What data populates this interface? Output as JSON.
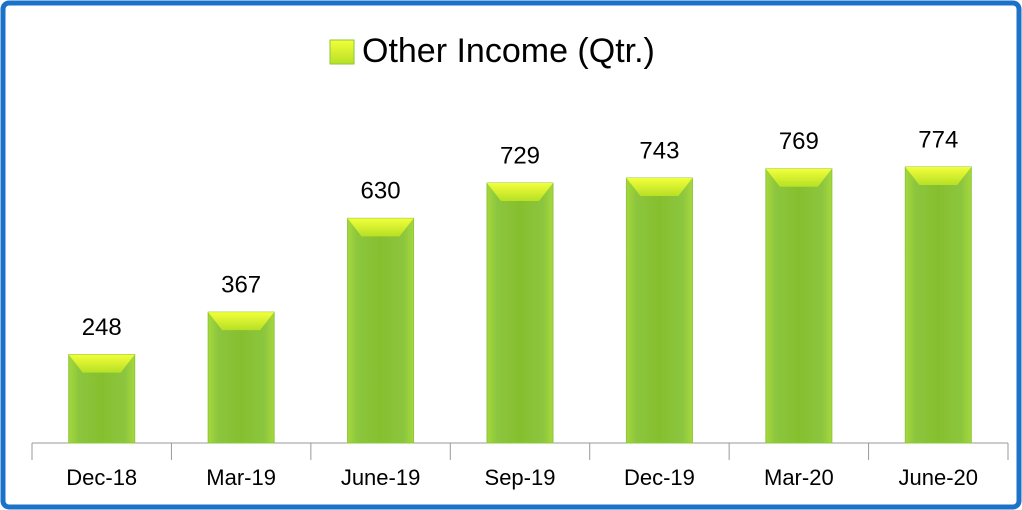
{
  "chart_data": {
    "type": "bar",
    "categories": [
      "Dec-18",
      "Mar-19",
      "June-19",
      "Sep-19",
      "Dec-19",
      "Mar-20",
      "June-20"
    ],
    "series": [
      {
        "name": "Other Income (Qtr.)",
        "color": "#8cc63f",
        "values": [
          248,
          367,
          630,
          729,
          743,
          769,
          774
        ]
      }
    ]
  }
}
